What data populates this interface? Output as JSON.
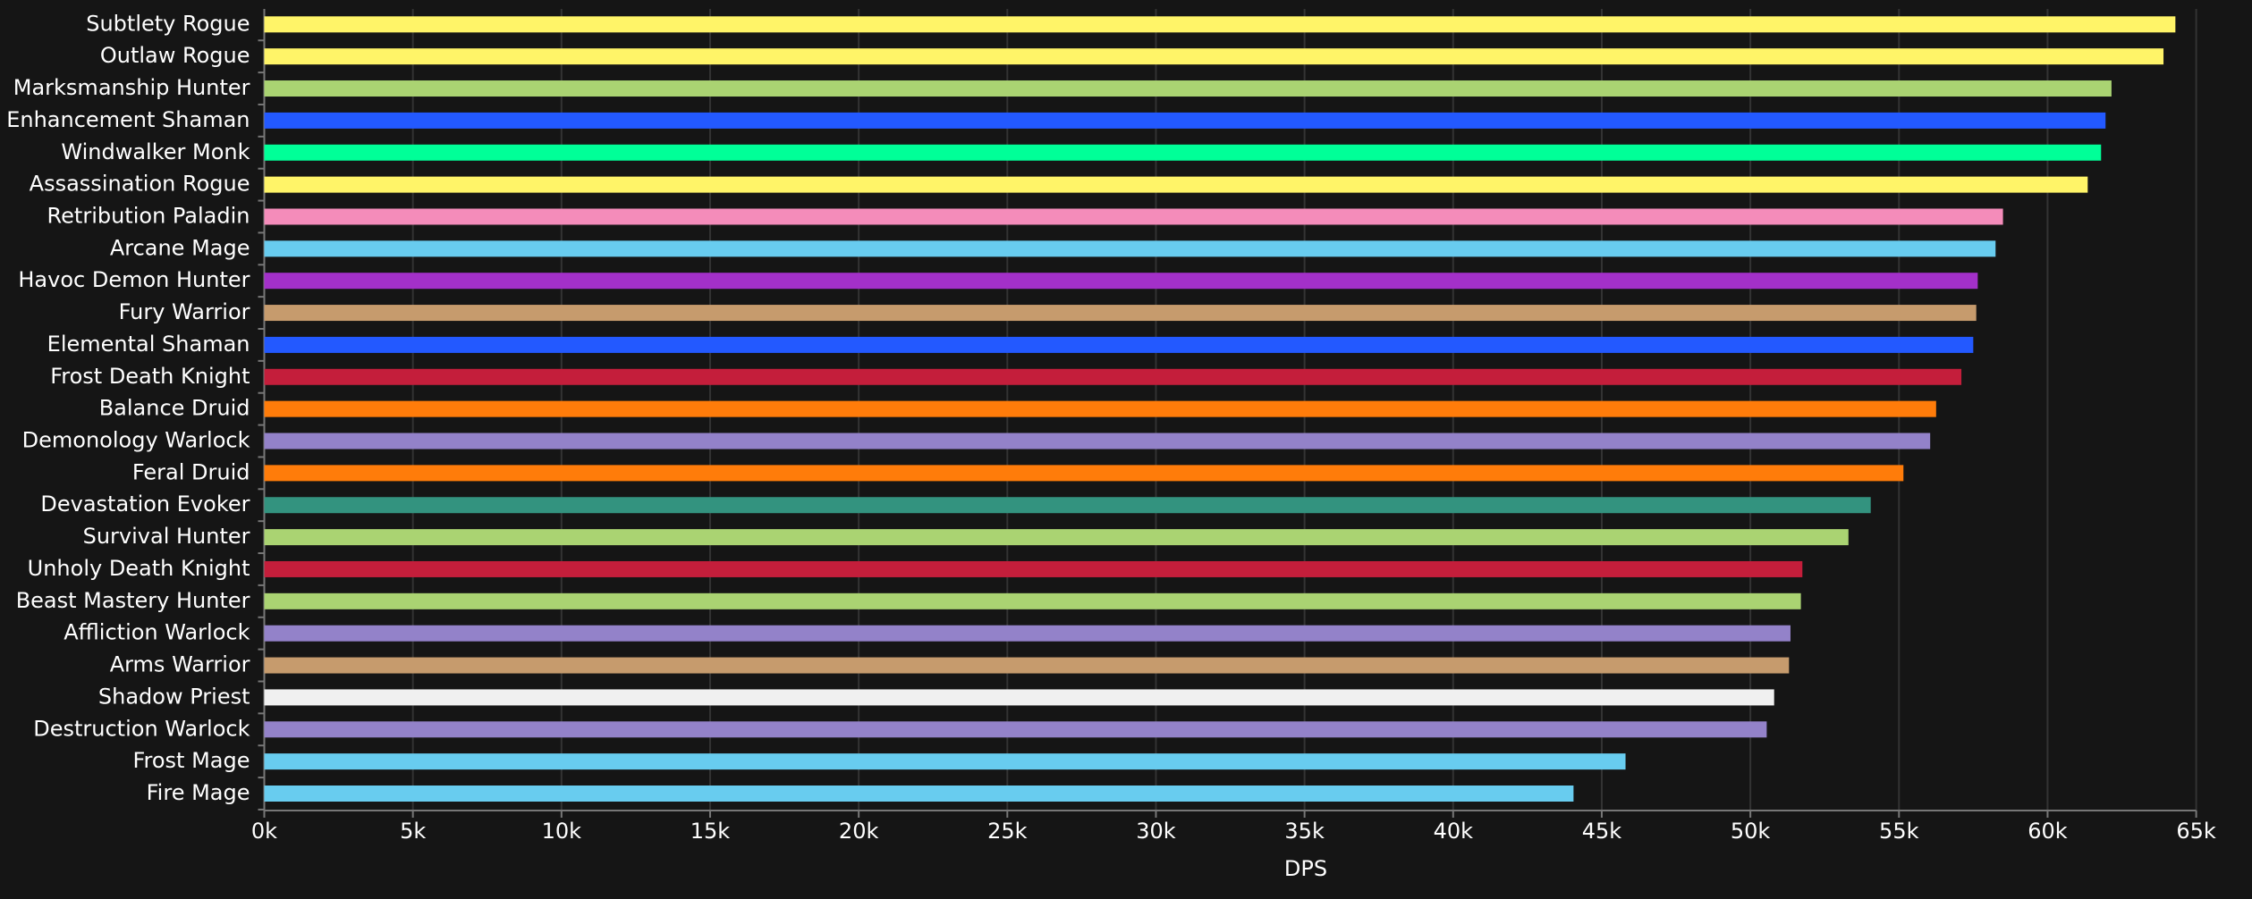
{
  "chart_data": {
    "type": "bar",
    "orientation": "horizontal",
    "x_label": "DPS",
    "categories": [
      "Subtlety Rogue",
      "Outlaw Rogue",
      "Marksmanship Hunter",
      "Enhancement Shaman",
      "Windwalker Monk",
      "Assassination Rogue",
      "Retribution Paladin",
      "Arcane Mage",
      "Havoc Demon Hunter",
      "Fury Warrior",
      "Elemental Shaman",
      "Frost Death Knight",
      "Balance Druid",
      "Demonology Warlock",
      "Feral Druid",
      "Devastation Evoker",
      "Survival Hunter",
      "Unholy Death Knight",
      "Beast Mastery Hunter",
      "Affliction Warlock",
      "Arms Warrior",
      "Shadow Priest",
      "Destruction Warlock",
      "Frost Mage",
      "Fire Mage"
    ],
    "values": [
      64300,
      63900,
      62150,
      61950,
      61800,
      61350,
      58500,
      58250,
      57650,
      57600,
      57500,
      57100,
      56250,
      56050,
      55150,
      54050,
      53300,
      51750,
      51700,
      51350,
      51300,
      50800,
      50550,
      45800,
      44050
    ],
    "colors": [
      "#fff468",
      "#fff468",
      "#aad372",
      "#2359ff",
      "#00ff98",
      "#fff468",
      "#f48cba",
      "#68ccef",
      "#a330c9",
      "#c69b6d",
      "#2359ff",
      "#c41e3b",
      "#ff7c0a",
      "#9382c9",
      "#ff7c0a",
      "#33937f",
      "#aad372",
      "#c41e3b",
      "#aad372",
      "#9382c9",
      "#c69b6d",
      "#f0f0f0",
      "#9382c9",
      "#68ccef",
      "#68ccef"
    ],
    "xlim": [
      0,
      65000
    ],
    "xticks": [
      {
        "value": 0,
        "label": "0k"
      },
      {
        "value": 5000,
        "label": "5k"
      },
      {
        "value": 10000,
        "label": "10k"
      },
      {
        "value": 15000,
        "label": "15k"
      },
      {
        "value": 20000,
        "label": "20k"
      },
      {
        "value": 25000,
        "label": "25k"
      },
      {
        "value": 30000,
        "label": "30k"
      },
      {
        "value": 35000,
        "label": "35k"
      },
      {
        "value": 40000,
        "label": "40k"
      },
      {
        "value": 45000,
        "label": "45k"
      },
      {
        "value": 50000,
        "label": "50k"
      },
      {
        "value": 55000,
        "label": "55k"
      },
      {
        "value": 60000,
        "label": "60k"
      },
      {
        "value": 65000,
        "label": "65k"
      }
    ],
    "grid": true
  }
}
